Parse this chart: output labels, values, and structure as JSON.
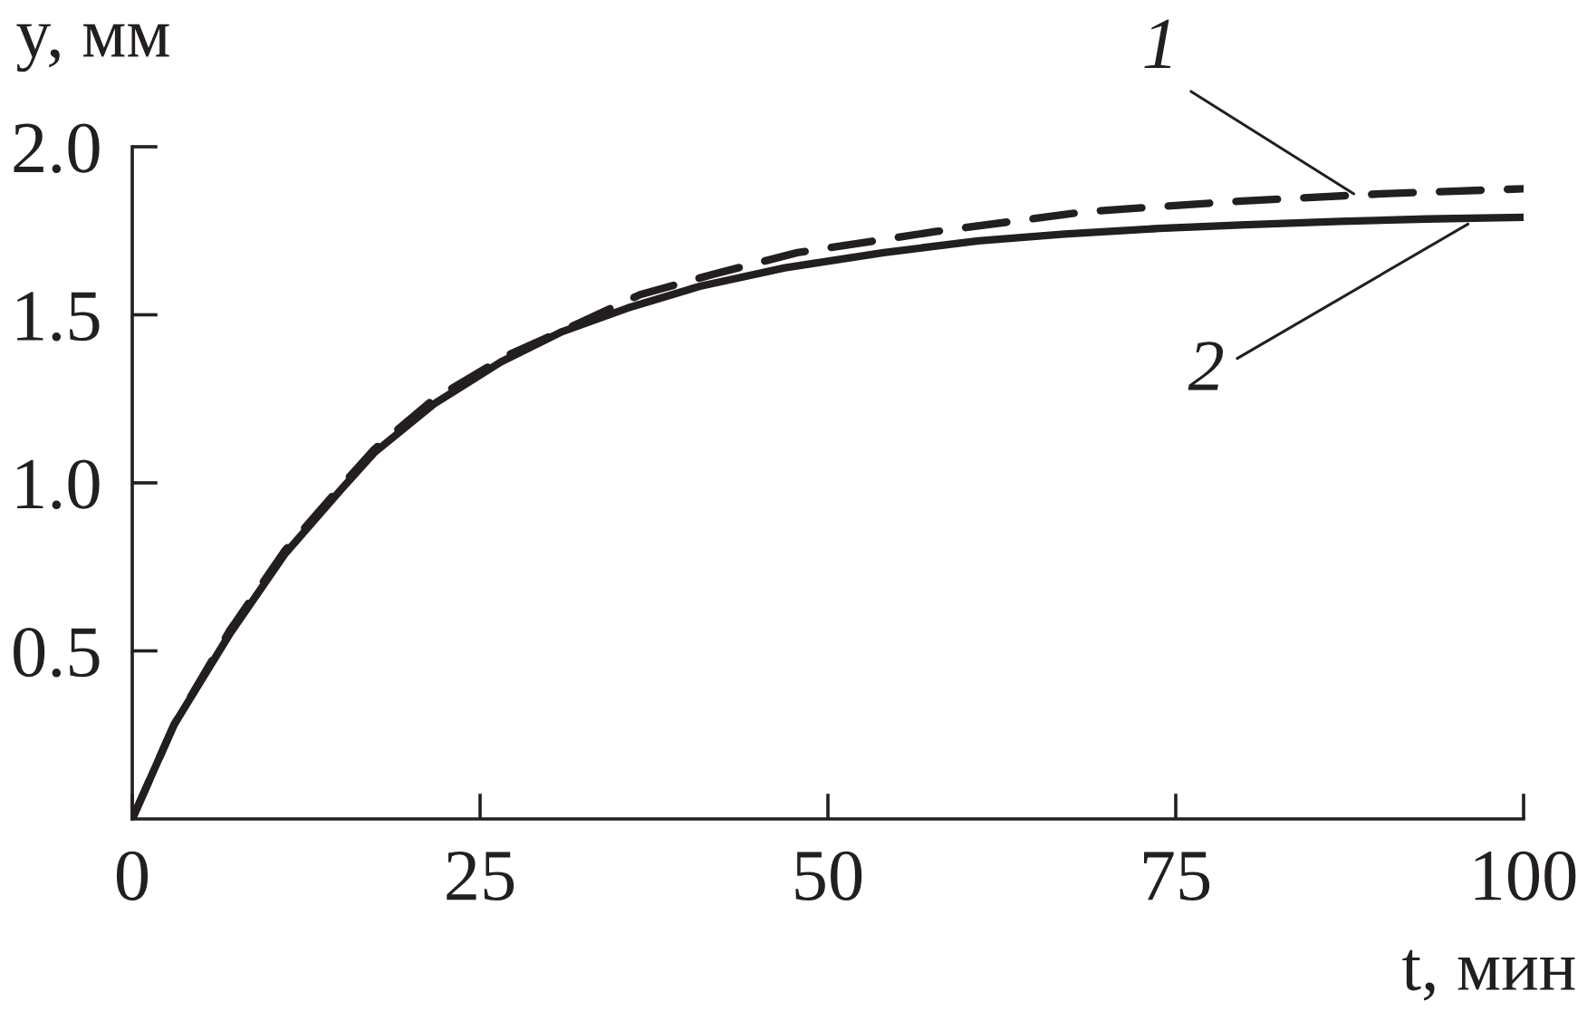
{
  "chart_data": {
    "type": "line",
    "xlabel": "t, мин",
    "ylabel": "y, мм",
    "xlim": [
      0,
      100
    ],
    "ylim": [
      0,
      2.0
    ],
    "xticks": [
      0,
      25,
      50,
      75,
      100
    ],
    "yticks": [
      {
        "value": 0.5,
        "label": "0.5"
      },
      {
        "value": 1.0,
        "label": "1.0"
      },
      {
        "value": 1.5,
        "label": "1.5"
      },
      {
        "value": 2.0,
        "label": "2.0"
      }
    ],
    "series": [
      {
        "color": "#231f20",
        "line_style": "dashed",
        "x": [
          0,
          3,
          7,
          11,
          15,
          17.4,
          21.7,
          27,
          31.3,
          36.5,
          41.7,
          47.8,
          57.8,
          68.6,
          79.5,
          90.3,
          100
        ],
        "values": [
          0,
          0.28,
          0.56,
          0.8,
          0.99,
          1.1,
          1.25,
          1.38,
          1.46,
          1.56,
          1.62,
          1.685,
          1.748,
          1.807,
          1.838,
          1.861,
          1.875
        ]
      },
      {
        "color": "#231f20",
        "line_style": "solid",
        "x": [
          0,
          3,
          7,
          11,
          15,
          17.4,
          21.7,
          26.5,
          30.9,
          35.6,
          40.8,
          46.9,
          54,
          60.8,
          67,
          73.8,
          80,
          86.8,
          93,
          100
        ],
        "values": [
          0,
          0.28,
          0.55,
          0.79,
          0.98,
          1.09,
          1.235,
          1.36,
          1.45,
          1.52,
          1.585,
          1.64,
          1.685,
          1.72,
          1.74,
          1.757,
          1.768,
          1.778,
          1.785,
          1.79
        ]
      }
    ],
    "annotations": [
      {
        "text": "1",
        "x": 87.8,
        "y": 1.86
      },
      {
        "text": "2",
        "x": 96,
        "y": 1.77
      }
    ]
  }
}
